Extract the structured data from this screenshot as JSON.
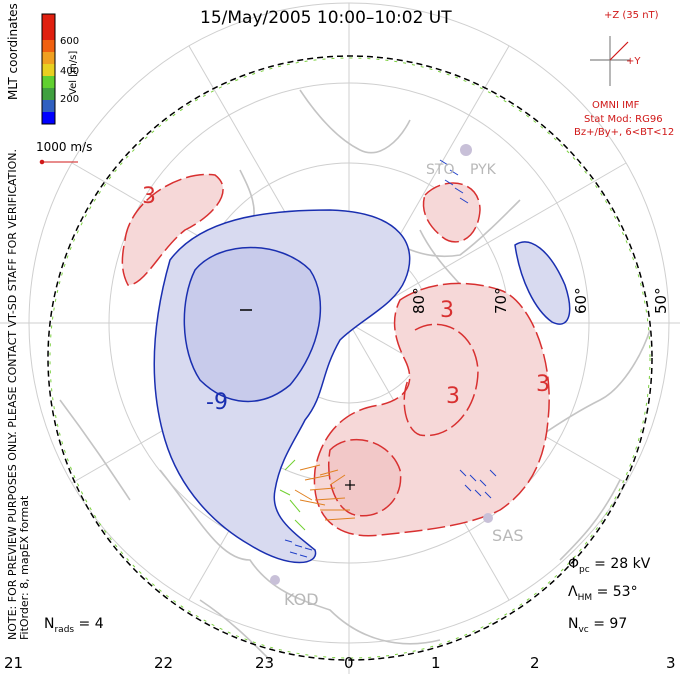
{
  "title": "15/May/2005 10:00–10:02 UT",
  "colorbar": {
    "label": "Vel [m/s]",
    "ticks": [
      "600",
      "400",
      "200"
    ],
    "colors": [
      "#0000ff",
      "#3060c0",
      "#40a040",
      "#60d030",
      "#e8d020",
      "#f0a020",
      "#f06010",
      "#e02010"
    ]
  },
  "coord_label": "MLT coordinates",
  "scale_label": "1000 m/s",
  "imf": {
    "z_label": "+Z (35 nT)",
    "y_label": "+Y",
    "source": "OMNI IMF",
    "stat_mod": "Stat Mod: RG96",
    "bins": "Bz+/By+, 6<BT<12"
  },
  "note": "NOTE: FOR PREVIEW PURPOSES ONLY. PLEASE CONTACT VT-SD STAFF FOR VERIFICATION.",
  "fitorder": "FitOrder: 8, mapEX format",
  "stations": [
    "SAS",
    "KOD",
    "STO",
    "PYK"
  ],
  "lat_labels": [
    "80°",
    "70°",
    "60°",
    "50°"
  ],
  "mlt_labels": [
    "21",
    "22",
    "23",
    "0",
    "1",
    "2",
    "3"
  ],
  "contours": {
    "neg": [
      "-9",
      "-"
    ],
    "pos": [
      "3",
      "3",
      "3",
      "3"
    ]
  },
  "stats": {
    "phi_pc": "28 kV",
    "lambda_hm": "53°",
    "n_vc": "97",
    "n_rads": "4"
  },
  "colors": {
    "negative_fill": "#d8daf0",
    "negative_line": "#1a2fb0",
    "positive_fill": "#f6d8d8",
    "positive_line": "#d83030",
    "boundary": "#7cd040",
    "grid": "#cfcfcf",
    "land": "#c4c4c4"
  }
}
